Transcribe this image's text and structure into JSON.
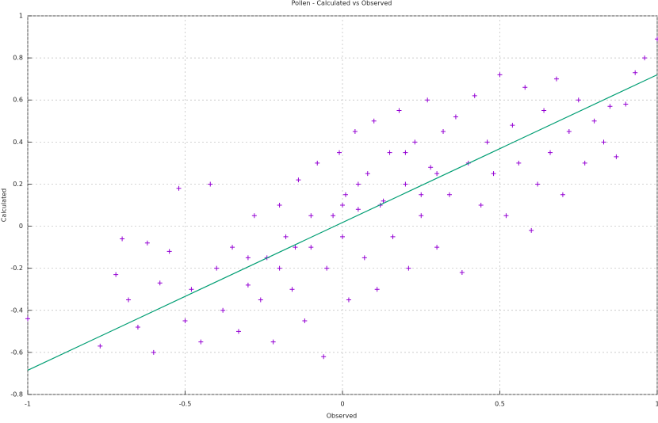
{
  "chart_data": {
    "type": "scatter",
    "title": "Pollen - Calculated vs Observed",
    "x_label": "Observed",
    "y_label": "Calculated",
    "xlim": [
      -1,
      1
    ],
    "ylim": [
      -0.8,
      1
    ],
    "xticks": [
      -1,
      -0.5,
      0,
      0.5,
      1
    ],
    "yticks": [
      -0.8,
      -0.6,
      -0.4,
      -0.2,
      0,
      0.2,
      0.4,
      0.6,
      0.8,
      1
    ],
    "grid": true,
    "points": {
      "color": "#9400d3",
      "x": [
        -1,
        -0.77,
        -0.72,
        -0.7,
        -0.68,
        -0.65,
        -0.62,
        -0.6,
        -0.58,
        -0.55,
        -0.52,
        -0.5,
        -0.48,
        -0.45,
        -0.42,
        -0.4,
        -0.38,
        -0.35,
        -0.33,
        -0.3,
        -0.28,
        -0.26,
        -0.24,
        -0.22,
        -0.2,
        -0.18,
        -0.16,
        -0.14,
        -0.12,
        -0.1,
        -0.08,
        -0.06,
        -0.05,
        -0.03,
        -0.01,
        0,
        0.01,
        0.02,
        0.04,
        0.05,
        0.07,
        0.08,
        0.1,
        0.11,
        0.13,
        0.15,
        0.16,
        0.18,
        0.2,
        0.21,
        0.23,
        0.25,
        0.27,
        0.28,
        0.3,
        0.32,
        0.34,
        0.36,
        0.38,
        0.4,
        0.42,
        0.44,
        0.46,
        0.48,
        0.5,
        0.52,
        0.54,
        0.56,
        0.58,
        0.6,
        0.62,
        0.64,
        0.66,
        0.68,
        0.7,
        0.72,
        0.75,
        0.77,
        0.8,
        0.83,
        0.85,
        0.87,
        0.9,
        0.93,
        0.96,
        1,
        -0.1,
        0.05,
        0.12,
        -0.2,
        0.3,
        -0.3,
        0.2,
        0,
        -0.15,
        0.25
      ],
      "y": [
        -0.44,
        -0.57,
        -0.23,
        -0.06,
        -0.35,
        -0.48,
        -0.08,
        -0.6,
        -0.27,
        -0.12,
        0.18,
        -0.45,
        -0.3,
        -0.55,
        0.2,
        -0.2,
        -0.4,
        -0.1,
        -0.5,
        -0.28,
        0.05,
        -0.35,
        -0.15,
        -0.55,
        0.1,
        -0.05,
        -0.3,
        0.22,
        -0.45,
        -0.1,
        0.3,
        -0.62,
        -0.2,
        0.05,
        0.35,
        -0.05,
        0.15,
        -0.35,
        0.45,
        0.08,
        -0.15,
        0.25,
        0.5,
        -0.3,
        0.12,
        0.35,
        -0.05,
        0.55,
        0.2,
        -0.2,
        0.4,
        0.05,
        0.6,
        0.28,
        -0.1,
        0.45,
        0.15,
        0.52,
        -0.22,
        0.3,
        0.62,
        0.1,
        0.4,
        0.25,
        0.72,
        0.05,
        0.48,
        0.3,
        0.66,
        -0.02,
        0.2,
        0.55,
        0.35,
        0.7,
        0.15,
        0.45,
        0.6,
        0.3,
        0.5,
        0.4,
        0.57,
        0.33,
        0.58,
        0.73,
        0.8,
        0.89,
        0.05,
        0.2,
        0.1,
        -0.2,
        0.25,
        -0.15,
        0.35,
        0.1,
        -0.1,
        0.15
      ]
    },
    "fit": {
      "color": "#009e73",
      "x": [
        -1,
        1
      ],
      "y": [
        -0.685,
        0.72
      ]
    }
  }
}
